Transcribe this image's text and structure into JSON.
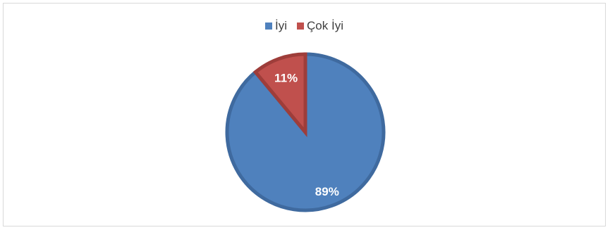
{
  "chart_data": {
    "type": "pie",
    "categories": [
      "İyi",
      "Çok İyi"
    ],
    "values": [
      89,
      11
    ],
    "labels": [
      "89%",
      "11%"
    ],
    "colors": [
      "#4f81bd",
      "#c0504d"
    ],
    "border_colors": [
      "#3f6a9f",
      "#9e3d3a"
    ],
    "legend_position": "top",
    "start_angle_deg": 0,
    "direction": "clockwise"
  }
}
